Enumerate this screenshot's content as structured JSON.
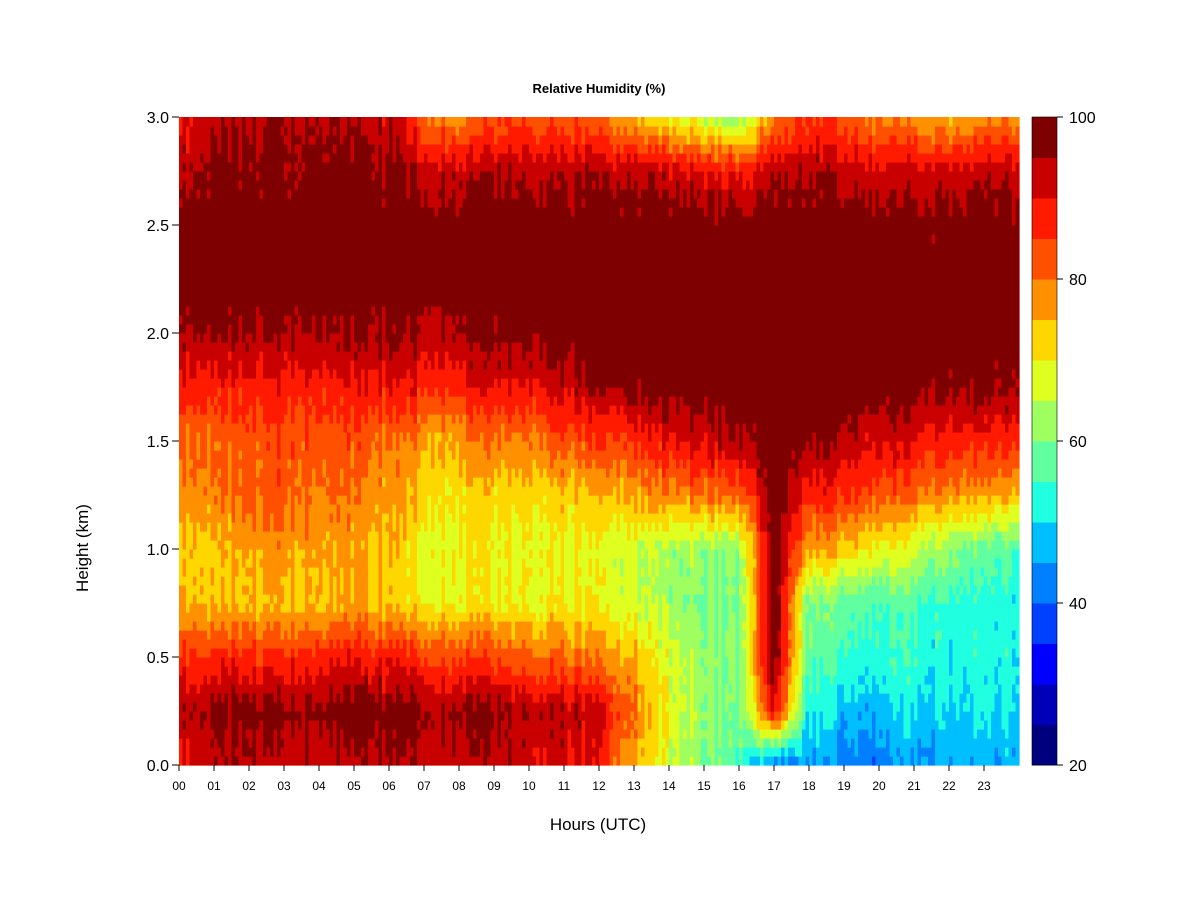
{
  "chart_data": {
    "type": "heatmap",
    "title": "Relative Humidity (%)",
    "xlabel": "Hours (UTC)",
    "ylabel": "Height (km)",
    "x_ticks": [
      "00",
      "01",
      "02",
      "03",
      "04",
      "05",
      "06",
      "07",
      "08",
      "09",
      "10",
      "11",
      "12",
      "13",
      "14",
      "15",
      "16",
      "17",
      "18",
      "19",
      "20",
      "21",
      "22",
      "23"
    ],
    "y_ticks": [
      "0.0",
      "0.5",
      "1.0",
      "1.5",
      "2.0",
      "2.5",
      "3.0"
    ],
    "xlim": [
      0,
      24
    ],
    "ylim": [
      0,
      3.0
    ],
    "colorbar": {
      "ticks": [
        "20",
        "40",
        "60",
        "80",
        "100"
      ],
      "range": [
        20,
        100
      ],
      "levels": [
        20,
        25,
        30,
        35,
        40,
        45,
        50,
        55,
        60,
        65,
        70,
        75,
        80,
        85,
        90,
        95,
        100
      ],
      "colors": [
        "#00007F",
        "#0000B8",
        "#0000FF",
        "#0040FF",
        "#0080FF",
        "#00BFFF",
        "#20FFDF",
        "#60FF9F",
        "#9FFF60",
        "#DFFF20",
        "#FFD700",
        "#FF9000",
        "#FF5000",
        "#FF1A00",
        "#C80000",
        "#7F0000"
      ]
    },
    "description": "Relative humidity time-height cross-section, 00-24 UTC, 0-3 km",
    "x": [
      0,
      1,
      2,
      3,
      4,
      5,
      6,
      7,
      8,
      9,
      10,
      11,
      12,
      13,
      14,
      15,
      16,
      17,
      18,
      19,
      20,
      21,
      22,
      23,
      24
    ],
    "heights_km": [
      0.0,
      0.25,
      0.5,
      0.75,
      1.0,
      1.25,
      1.5,
      1.75,
      2.0,
      2.25,
      2.5,
      2.75,
      3.0
    ],
    "values": [
      [
        88,
        93,
        85,
        74,
        73,
        77,
        80,
        88,
        94,
        99,
        97,
        93,
        88
      ],
      [
        92,
        96,
        86,
        73,
        73,
        78,
        80,
        86,
        95,
        100,
        98,
        96,
        93
      ],
      [
        93,
        97,
        86,
        74,
        75,
        81,
        82,
        88,
        95,
        100,
        99,
        96,
        94
      ],
      [
        92,
        97,
        86,
        74,
        77,
        82,
        83,
        88,
        95,
        100,
        99,
        97,
        95
      ],
      [
        92,
        97,
        87,
        74,
        76,
        80,
        82,
        88,
        95,
        100,
        99,
        97,
        94
      ],
      [
        93,
        98,
        88,
        75,
        75,
        79,
        82,
        88,
        95,
        100,
        99,
        97,
        94
      ],
      [
        94,
        98,
        88,
        73,
        74,
        77,
        80,
        89,
        96,
        100,
        99,
        96,
        93
      ],
      [
        94,
        97,
        86,
        71,
        70,
        73,
        77,
        88,
        95,
        100,
        99,
        94,
        82
      ],
      [
        93,
        97,
        85,
        70,
        70,
        72,
        77,
        88,
        96,
        100,
        99,
        93,
        78
      ],
      [
        93,
        96,
        84,
        70,
        69,
        72,
        79,
        90,
        97,
        100,
        99,
        94,
        82
      ],
      [
        92,
        95,
        82,
        70,
        69,
        73,
        80,
        91,
        98,
        100,
        99,
        94,
        84
      ],
      [
        91,
        94,
        80,
        70,
        69,
        73,
        82,
        92,
        99,
        100,
        99,
        94,
        82
      ],
      [
        88,
        92,
        79,
        69,
        68,
        74,
        84,
        95,
        100,
        100,
        100,
        94,
        80
      ],
      [
        75,
        80,
        74,
        66,
        66,
        76,
        86,
        97,
        100,
        100,
        100,
        93,
        73
      ],
      [
        66,
        68,
        67,
        62,
        62,
        78,
        89,
        99,
        100,
        100,
        99,
        92,
        70
      ],
      [
        60,
        62,
        62,
        60,
        62,
        80,
        92,
        100,
        100,
        100,
        99,
        90,
        65
      ],
      [
        56,
        58,
        60,
        59,
        61,
        80,
        95,
        100,
        100,
        100,
        98,
        88,
        60
      ],
      [
        40,
        90,
        100,
        100,
        100,
        100,
        100,
        100,
        100,
        100,
        100,
        94,
        80
      ],
      [
        46,
        52,
        58,
        60,
        76,
        88,
        97,
        100,
        100,
        100,
        99,
        95,
        86
      ],
      [
        42,
        48,
        55,
        58,
        74,
        86,
        94,
        100,
        100,
        100,
        99,
        93,
        82
      ],
      [
        43,
        48,
        54,
        56,
        70,
        84,
        92,
        99,
        100,
        100,
        98,
        92,
        80
      ],
      [
        45,
        50,
        54,
        56,
        66,
        80,
        90,
        98,
        100,
        100,
        98,
        92,
        77
      ],
      [
        46,
        50,
        52,
        54,
        62,
        78,
        88,
        97,
        100,
        100,
        98,
        92,
        75
      ],
      [
        46,
        50,
        52,
        52,
        58,
        76,
        87,
        96,
        100,
        100,
        98,
        93,
        78
      ],
      [
        46,
        50,
        52,
        52,
        56,
        75,
        87,
        96,
        100,
        100,
        98,
        93,
        78
      ]
    ]
  }
}
